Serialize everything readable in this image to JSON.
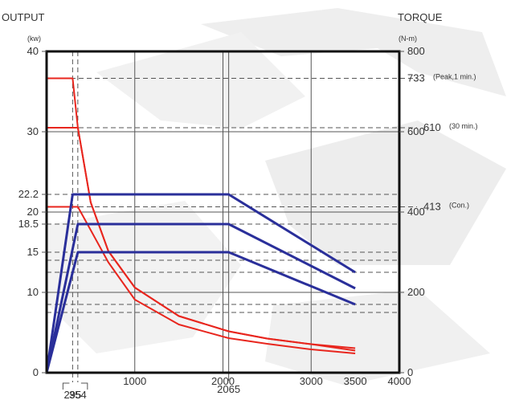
{
  "chart_data": {
    "type": "line",
    "left_axis": {
      "title": "OUTPUT",
      "unit": "(kw)",
      "range": [
        0,
        40
      ],
      "ticks": [
        "0",
        "10",
        "15",
        "18.5",
        "20",
        "22.2",
        "30",
        "40"
      ]
    },
    "right_axis": {
      "title": "TORQUE",
      "unit": "(N-m)",
      "range": [
        0,
        800
      ],
      "ticks": [
        "0",
        "200",
        "400",
        "600",
        "800"
      ]
    },
    "x_axis": {
      "range": [
        0,
        4000
      ],
      "ticks": [
        "1000",
        "2000",
        "3000",
        "3500",
        "4000"
      ],
      "below_ticks": [
        "295",
        "354",
        "2065"
      ]
    },
    "annotations": [
      {
        "value": "733",
        "note": "(Peak,1 min.)"
      },
      {
        "value": "610",
        "note": "(30 min.)"
      },
      {
        "value": "413",
        "note": "(Con.)"
      }
    ],
    "grid": true,
    "colors": {
      "output": "#2a2f9a",
      "torque": "#e8261e",
      "axis": "#111111",
      "grid": "#555555"
    },
    "output_series": [
      {
        "x": [
          0,
          295,
          2065,
          3500
        ],
        "y": [
          0,
          22.2,
          22.2,
          12.5
        ]
      },
      {
        "x": [
          0,
          354,
          2065,
          3500
        ],
        "y": [
          0,
          18.5,
          18.5,
          10.5
        ]
      },
      {
        "x": [
          0,
          354,
          2065,
          3500
        ],
        "y": [
          0,
          15,
          15,
          8.5
        ]
      }
    ],
    "torque_series": [
      {
        "x": [
          0,
          295,
          354,
          500,
          700,
          1000,
          1500,
          2065,
          2500,
          3000,
          3500
        ],
        "y": [
          733,
          733,
          610,
          424,
          303,
          212,
          141,
          103,
          85,
          71,
          61
        ]
      },
      {
        "x": [
          0,
          354,
          500,
          700,
          1000,
          1500,
          2065,
          2500,
          3000,
          3500
        ],
        "y": [
          610,
          610,
          424,
          303,
          212,
          141,
          103,
          85,
          71,
          55
        ]
      },
      {
        "x": [
          0,
          354,
          500,
          700,
          1000,
          1500,
          2065,
          2500,
          3000,
          3500
        ],
        "y": [
          413,
          413,
          355,
          275,
          182,
          120,
          86,
          72,
          58,
          48
        ]
      }
    ]
  }
}
